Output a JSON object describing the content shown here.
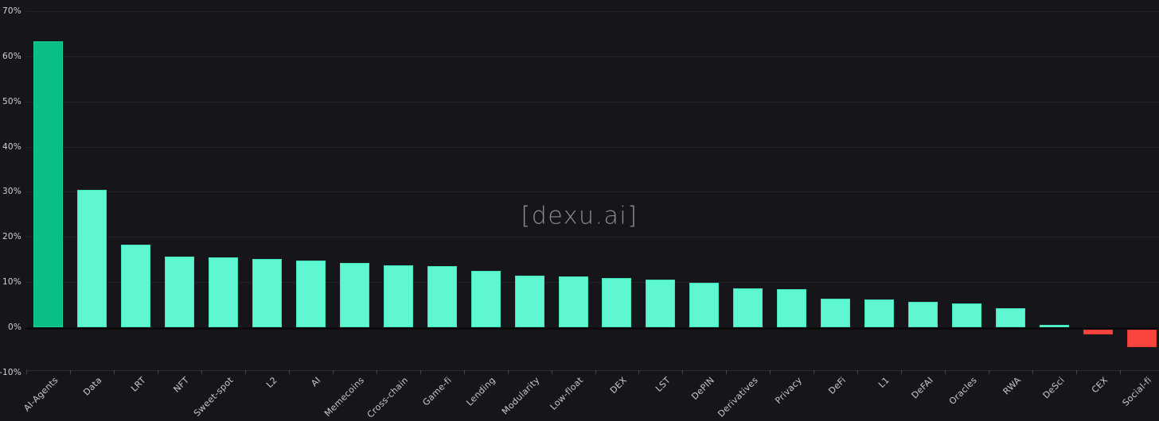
{
  "chart_data": {
    "type": "bar",
    "title": "",
    "watermark": "[dexu.ai]",
    "unit": "percent",
    "categories": [
      "AI-Agents",
      "Data",
      "LRT",
      "NFT",
      "Sweet-spot",
      "L2",
      "AI",
      "Memecoins",
      "Cross-chain",
      "Game-fi",
      "Lending",
      "Modularity",
      "Low-float",
      "DEX",
      "LST",
      "DePIN",
      "Derivatives",
      "Privacy",
      "DeFi",
      "L1",
      "DeFAI",
      "Oracles",
      "RWA",
      "DeSci",
      "CEX",
      "Social-fi"
    ],
    "values": [
      63.4,
      30.4,
      18.3,
      15.6,
      15.4,
      15.2,
      14.7,
      14.2,
      13.7,
      13.6,
      12.4,
      11.5,
      11.2,
      10.9,
      10.6,
      9.8,
      8.6,
      8.4,
      6.3,
      6.2,
      5.7,
      5.2,
      4.2,
      0.5,
      -1.0,
      -3.8
    ],
    "ylim": [
      -10,
      70
    ],
    "ytick_labels": [
      "70%",
      "60%",
      "50%",
      "40%",
      "30%",
      "20%",
      "10%",
      "0%",
      "-10%"
    ],
    "ytick_values": [
      70,
      60,
      50,
      40,
      30,
      20,
      10,
      0,
      -10
    ],
    "grid": "horizontal",
    "legend": "none",
    "colors": {
      "background": "#15151a",
      "highlight_bar": "#0abf85",
      "positive_bar": "#5ff7d2",
      "negative_bar": "#f9453e",
      "gridline": "#232329",
      "zero_line": "#0a0a0d",
      "axis_text": "#d2d2d5",
      "watermark": "#8d8d90"
    }
  }
}
